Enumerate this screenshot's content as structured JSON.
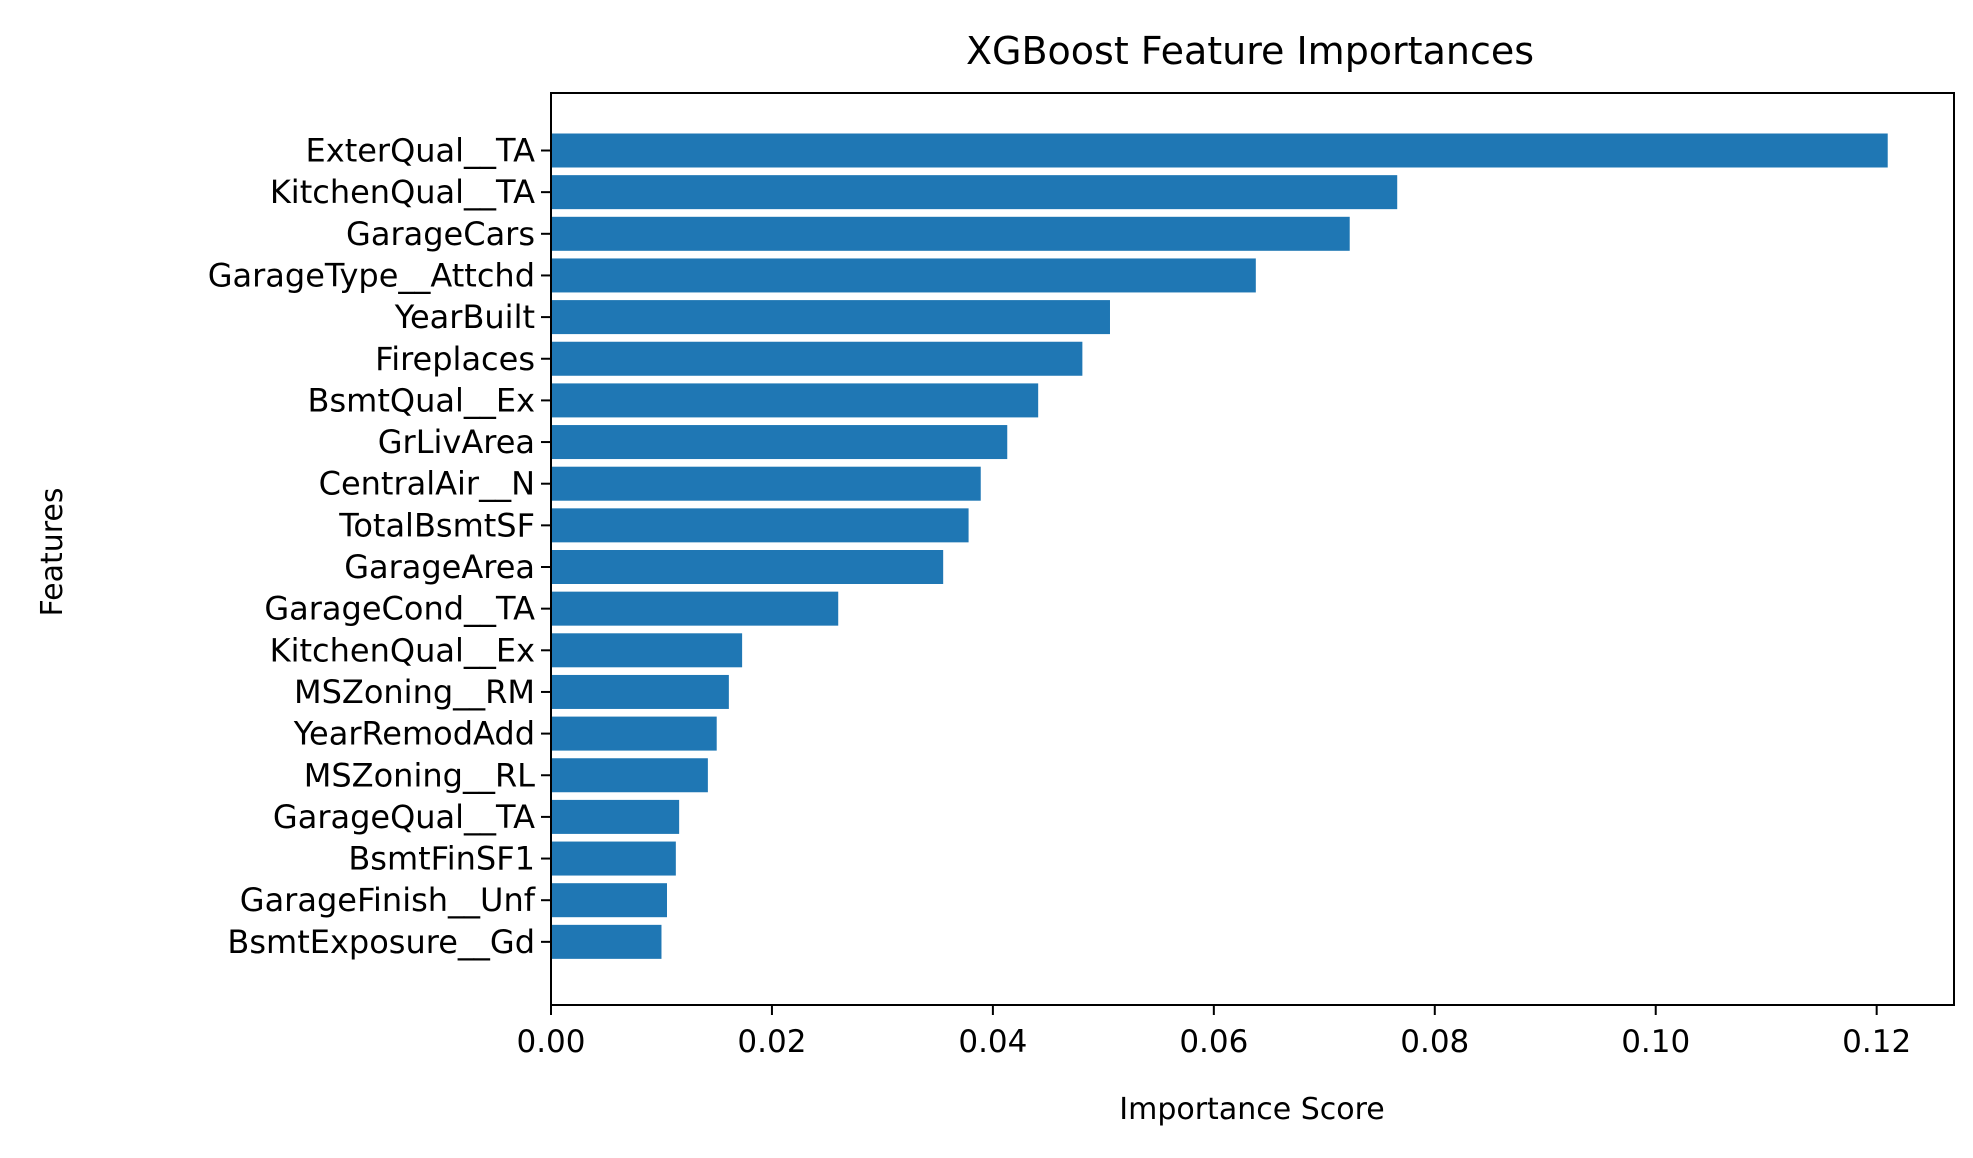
{
  "chart_data": {
    "type": "bar",
    "orientation": "horizontal",
    "title": "XGBoost Feature Importances",
    "xlabel": "Importance Score",
    "ylabel": "Features",
    "xlim": [
      0,
      0.127
    ],
    "xticks": [
      0.0,
      0.02,
      0.04,
      0.06,
      0.08,
      0.1,
      0.12
    ],
    "xtick_labels": [
      "0.00",
      "0.02",
      "0.04",
      "0.06",
      "0.08",
      "0.10",
      "0.12"
    ],
    "grid": false,
    "legend": "none",
    "bar_color": "#1f77b4",
    "categories": [
      "ExterQual__TA",
      "KitchenQual__TA",
      "GarageCars",
      "GarageType__Attchd",
      "YearBuilt",
      "Fireplaces",
      "BsmtQual__Ex",
      "GrLivArea",
      "CentralAir__N",
      "TotalBsmtSF",
      "GarageArea",
      "GarageCond__TA",
      "KitchenQual__Ex",
      "MSZoning__RM",
      "YearRemodAdd",
      "MSZoning__RL",
      "GarageQual__TA",
      "BsmtFinSF1",
      "GarageFinish__Unf",
      "BsmtExposure__Gd"
    ],
    "values": [
      0.121,
      0.0766,
      0.0723,
      0.0638,
      0.0506,
      0.0481,
      0.0441,
      0.0413,
      0.0389,
      0.0378,
      0.0355,
      0.026,
      0.0173,
      0.0161,
      0.015,
      0.0142,
      0.0116,
      0.0113,
      0.0105,
      0.01
    ]
  }
}
